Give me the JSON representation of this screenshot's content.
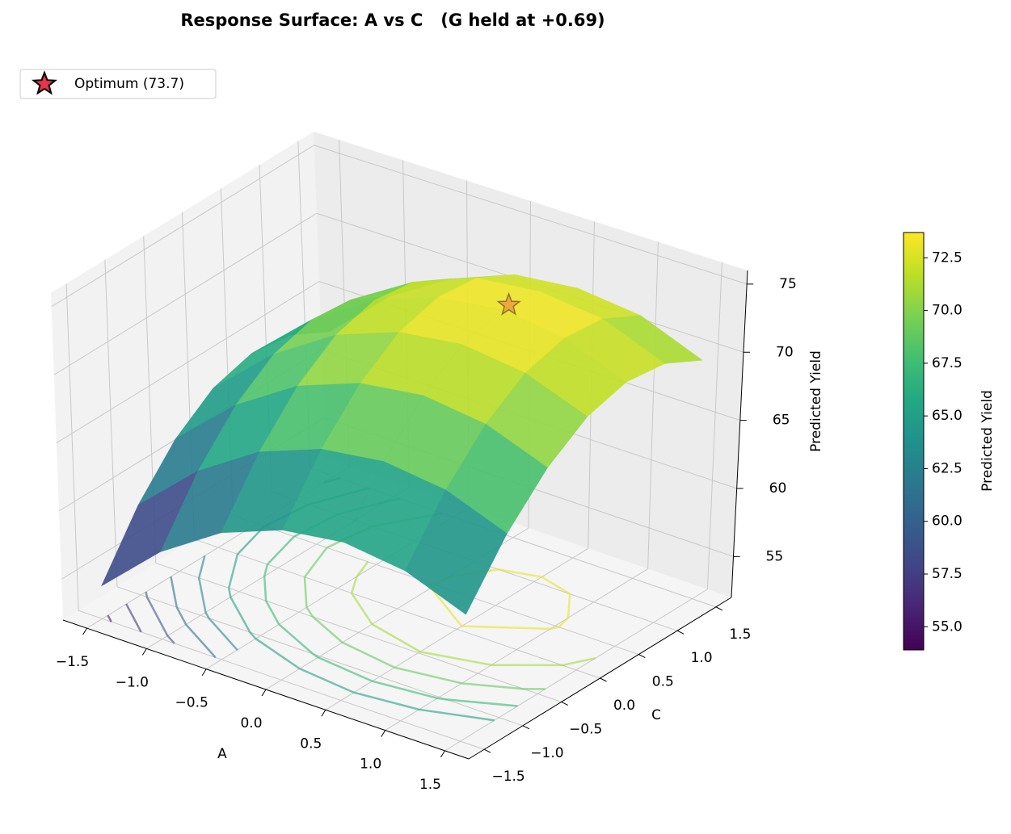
{
  "chart_data": {
    "type": "surface3d",
    "title": "Response Surface: A vs C   (G held at +0.69)",
    "xlabel": "A",
    "ylabel": "C",
    "zlabel": "Predicted Yield",
    "colorbar_label": "Predicted Yield",
    "colormap": "viridis",
    "grid": true,
    "legend": "upper left",
    "xlim": [
      -1.7,
      1.7
    ],
    "ylim": [
      -1.7,
      1.7
    ],
    "zlim": [
      52,
      76
    ],
    "xticks": [
      {
        "value": -1.5,
        "label": "−1.5"
      },
      {
        "value": -1.0,
        "label": "−1.0"
      },
      {
        "value": -0.5,
        "label": "−0.5"
      },
      {
        "value": 0,
        "label": "0.0"
      },
      0.5,
      {
        "value": 1.0,
        "label": "1.0"
      },
      1.5
    ],
    "yticks": [
      {
        "value": -1.5,
        "label": "−1.5"
      },
      {
        "value": -1.0,
        "label": "−1.0"
      },
      {
        "value": -0.5,
        "label": "−0.5"
      },
      {
        "value": 0,
        "label": "0.0"
      },
      0.5,
      {
        "value": 1.0,
        "label": "1.0"
      },
      1.5
    ],
    "zticks": [
      55,
      60,
      65,
      70,
      75
    ],
    "x": [
      -1.5,
      -1.0,
      -0.5,
      0,
      0.5,
      1.0,
      1.5
    ],
    "y": [
      -1.5,
      -1.0,
      -0.5,
      0,
      0.5,
      1.0,
      1.5
    ],
    "z": [
      [
        54.4,
        58.4,
        61.3,
        63.0,
        63.6,
        63.0,
        61.3
      ],
      [
        58.6,
        62.6,
        65.5,
        67.2,
        67.8,
        67.2,
        65.5
      ],
      [
        61.7,
        65.7,
        68.6,
        70.3,
        70.9,
        70.3,
        68.6
      ],
      [
        63.7,
        67.7,
        70.6,
        72.3,
        72.9,
        72.3,
        70.6
      ],
      [
        64.5,
        68.5,
        71.4,
        73.1,
        73.7,
        73.1,
        71.4
      ],
      [
        64.1,
        68.2,
        71.0,
        72.8,
        73.3,
        72.8,
        71.0
      ],
      [
        62.6,
        66.7,
        69.5,
        71.3,
        71.8,
        71.3,
        69.5
      ]
    ],
    "contour_levels": [
      55,
      57,
      59,
      61,
      63,
      65,
      67,
      69,
      71,
      73
    ],
    "clim": [
      53.9,
      73.7
    ],
    "cticks": [
      {
        "value": 55,
        "label": "55.0"
      },
      57.5,
      {
        "value": 60,
        "label": "60.0"
      },
      62.5,
      {
        "value": 65,
        "label": "65.0"
      },
      67.5,
      {
        "value": 70,
        "label": "70.0"
      },
      72.5
    ],
    "optimum": {
      "name": "Optimum (73.7)",
      "x": 0.5,
      "y": 0.6,
      "z": 73.7,
      "color": "#e8334a"
    }
  }
}
